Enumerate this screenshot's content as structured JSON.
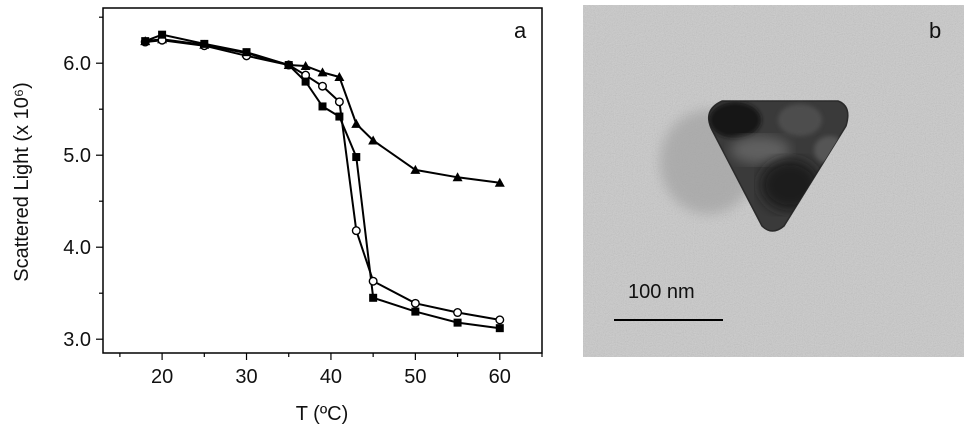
{
  "chart_data": {
    "type": "line",
    "panel_label": "a",
    "xlabel": "T (ºC)",
    "ylabel": "Scattered Light (x 10⁶)",
    "xlim": [
      13,
      65
    ],
    "ylim": [
      2.85,
      6.6
    ],
    "xticks": [
      "20",
      "30",
      "40",
      "50",
      "60"
    ],
    "yticks": [
      "3.0",
      "4.0",
      "5.0",
      "6.0"
    ],
    "grid": false,
    "legend": "none",
    "series": [
      {
        "marker": "triangle-filled",
        "x": [
          18,
          20,
          25,
          30,
          35,
          37,
          39,
          41,
          43,
          45,
          50,
          55,
          60
        ],
        "y": [
          6.24,
          6.26,
          6.2,
          6.11,
          5.98,
          5.97,
          5.9,
          5.85,
          5.34,
          5.16,
          4.84,
          4.76,
          4.7
        ]
      },
      {
        "marker": "circle-open",
        "x": [
          18,
          20,
          25,
          30,
          35,
          37,
          39,
          41,
          43,
          45,
          50,
          55,
          60
        ],
        "y": [
          6.23,
          6.25,
          6.19,
          6.08,
          5.98,
          5.87,
          5.75,
          5.58,
          4.18,
          3.63,
          3.39,
          3.29,
          3.21
        ]
      },
      {
        "marker": "square-filled",
        "x": [
          18,
          20,
          25,
          30,
          35,
          37,
          39,
          41,
          43,
          45,
          50,
          55,
          60
        ],
        "y": [
          6.24,
          6.31,
          6.21,
          6.12,
          5.98,
          5.8,
          5.53,
          5.42,
          4.98,
          3.45,
          3.3,
          3.18,
          3.12
        ]
      }
    ]
  },
  "micrograph": {
    "panel_label": "b",
    "scale_bar_label": "100 nm"
  }
}
